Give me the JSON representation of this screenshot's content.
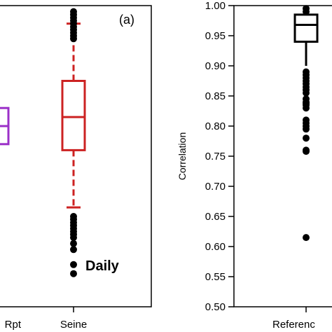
{
  "chart_data": [
    {
      "type": "box",
      "panel_label": "(a)",
      "annotation": "Daily",
      "categories": [
        "Rpt",
        "Seine"
      ],
      "boxes": [
        {
          "category": "Rpt",
          "color": "#9b30c8",
          "q1": 0.77,
          "median": 0.8,
          "q3": 0.83,
          "whisker_low": null,
          "whisker_high": null,
          "outliers": []
        },
        {
          "category": "Seine",
          "color": "#cc2222",
          "q1": 0.76,
          "median": 0.815,
          "q3": 0.875,
          "whisker_low": 0.665,
          "whisker_high": 0.97,
          "outliers": [
            0.99,
            0.985,
            0.98,
            0.975,
            0.97,
            0.965,
            0.96,
            0.955,
            0.95,
            0.945,
            0.65,
            0.645,
            0.64,
            0.635,
            0.63,
            0.625,
            0.62,
            0.615,
            0.605,
            0.595,
            0.57,
            0.555
          ]
        }
      ]
    },
    {
      "type": "box",
      "ylabel": "Correlation",
      "ylim": [
        0.5,
        1.0
      ],
      "yticks": [
        "0.50",
        "0.55",
        "0.60",
        "0.65",
        "0.70",
        "0.75",
        "0.80",
        "0.85",
        "0.90",
        "0.95",
        "1.00"
      ],
      "categories": [
        "Referenc"
      ],
      "boxes": [
        {
          "category": "Referenc",
          "color": "#000000",
          "q1": 0.94,
          "median": 0.968,
          "q3": 0.985,
          "whisker_low": 0.9,
          "whisker_high": 1.0,
          "outliers": [
            0.995,
            0.99,
            0.89,
            0.885,
            0.88,
            0.875,
            0.87,
            0.865,
            0.86,
            0.855,
            0.845,
            0.84,
            0.838,
            0.835,
            0.83,
            0.81,
            0.805,
            0.8,
            0.795,
            0.78,
            0.76,
            0.758,
            0.615
          ]
        }
      ]
    }
  ]
}
